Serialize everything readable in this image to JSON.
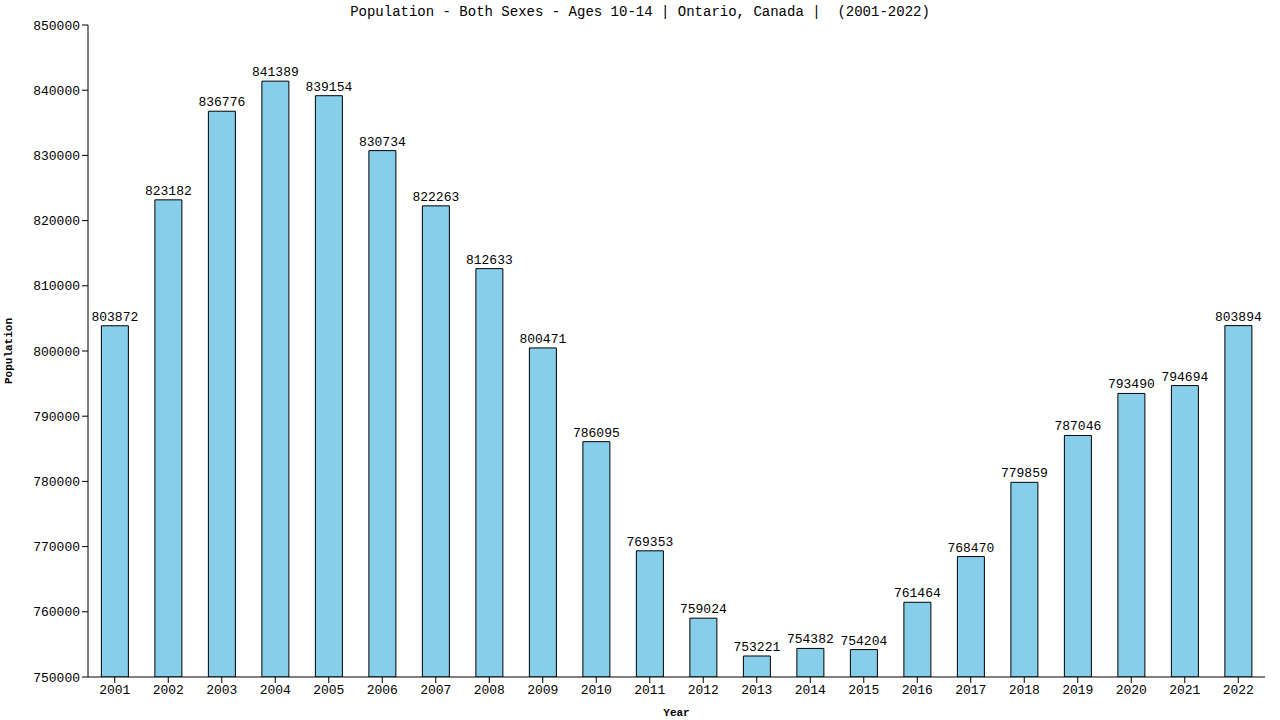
{
  "chart_data": {
    "type": "bar",
    "title": "Population - Both Sexes - Ages 10-14 | Ontario, Canada |  (2001-2022)",
    "x_label": "Year",
    "y_label": "Population",
    "categories": [
      "2001",
      "2002",
      "2003",
      "2004",
      "2005",
      "2006",
      "2007",
      "2008",
      "2009",
      "2010",
      "2011",
      "2012",
      "2013",
      "2014",
      "2015",
      "2016",
      "2017",
      "2018",
      "2019",
      "2020",
      "2021",
      "2022"
    ],
    "values": [
      803872,
      823182,
      836776,
      841389,
      839154,
      830734,
      822263,
      812633,
      800471,
      786095,
      769353,
      759024,
      753221,
      754382,
      754204,
      761464,
      768470,
      779859,
      787046,
      793490,
      794694,
      803894
    ],
    "color": "#87ceeb",
    "ylim": [
      750000,
      850000
    ],
    "yticks": [
      750000,
      760000,
      770000,
      780000,
      790000,
      800000,
      810000,
      820000,
      830000,
      840000,
      850000
    ],
    "grid": false,
    "data_labels": true
  }
}
